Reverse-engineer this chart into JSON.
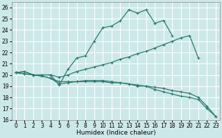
{
  "xlabel": "Humidex (Indice chaleur)",
  "xlim": [
    -0.5,
    23.5
  ],
  "ylim": [
    16,
    26.5
  ],
  "xticks": [
    0,
    1,
    2,
    3,
    4,
    5,
    6,
    7,
    8,
    9,
    10,
    11,
    12,
    13,
    14,
    15,
    16,
    17,
    18,
    19,
    20,
    21,
    22,
    23
  ],
  "yticks": [
    16,
    17,
    18,
    19,
    20,
    21,
    22,
    23,
    24,
    25,
    26
  ],
  "bg_color": "#cde8e8",
  "grid_color": "#ffffff",
  "line_color": "#2a7a6e",
  "line1_x": [
    0,
    1,
    2,
    3,
    4,
    5,
    6,
    7,
    8,
    9,
    10,
    11,
    12,
    13,
    14,
    15,
    16,
    17,
    18
  ],
  "line1_y": [
    20.2,
    20.3,
    20.0,
    20.0,
    20.0,
    19.1,
    20.5,
    21.5,
    21.7,
    23.0,
    24.2,
    24.35,
    24.8,
    25.8,
    25.5,
    25.8,
    24.6,
    24.85,
    23.5
  ],
  "line2_x": [
    0,
    1,
    2,
    3,
    4,
    5,
    6,
    7,
    8,
    9,
    10,
    11,
    12,
    13,
    14,
    15,
    16,
    17,
    18,
    19,
    20,
    21
  ],
  "line2_y": [
    20.2,
    20.3,
    20.0,
    20.0,
    20.0,
    19.8,
    20.0,
    20.3,
    20.5,
    20.7,
    20.9,
    21.1,
    21.4,
    21.6,
    21.9,
    22.1,
    22.4,
    22.7,
    23.0,
    23.3,
    23.5,
    21.5
  ],
  "line3_x": [
    0,
    1,
    2,
    3,
    4,
    5,
    6,
    7,
    8,
    9,
    10,
    11,
    12,
    13,
    14,
    15,
    16,
    17,
    18,
    19,
    20,
    21,
    22,
    23
  ],
  "line3_y": [
    20.2,
    20.1,
    20.0,
    19.9,
    19.7,
    19.4,
    19.4,
    19.4,
    19.4,
    19.4,
    19.4,
    19.3,
    19.3,
    19.2,
    19.1,
    19.0,
    18.9,
    18.8,
    18.6,
    18.5,
    18.35,
    18.0,
    17.2,
    16.3
  ],
  "line4_x": [
    0,
    1,
    2,
    3,
    4,
    5,
    6,
    7,
    8,
    9,
    10,
    11,
    12,
    13,
    14,
    15,
    16,
    17,
    18,
    19,
    20,
    21,
    22,
    23
  ],
  "line4_y": [
    20.2,
    20.1,
    20.0,
    19.9,
    19.7,
    19.2,
    19.3,
    19.4,
    19.5,
    19.5,
    19.5,
    19.4,
    19.3,
    19.2,
    19.0,
    19.0,
    18.7,
    18.5,
    18.3,
    18.1,
    18.0,
    17.8,
    17.0,
    16.3
  ]
}
